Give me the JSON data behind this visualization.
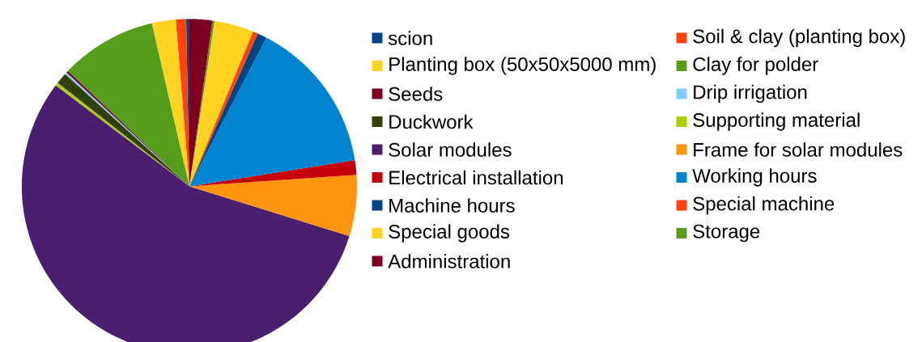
{
  "chart_data": {
    "type": "pie",
    "legend": "right",
    "categories": [
      "scion",
      "Soil & clay (planting box)",
      "Planting box (50x50x5000 mm)",
      "Clay for polder",
      "Seeds",
      "Drip irrigation",
      "Duckwork",
      "Supporting material",
      "Solar modules",
      "Frame for solar modules",
      "Electrical installation",
      "Working hours",
      "Machine hours",
      "Special machine",
      "Special goods",
      "Storage",
      "Administration"
    ],
    "values": [
      0.3,
      1.0,
      2.3,
      9.3,
      0.2,
      0.2,
      1.1,
      0.3,
      55.5,
      5.9,
      1.4,
      14.9,
      0.9,
      0.5,
      3.8,
      0.2,
      2.2
    ],
    "colors": [
      "#004586",
      "#ff420e",
      "#ffd320",
      "#579d1c",
      "#7e0021",
      "#83caff",
      "#314004",
      "#aecf00",
      "#4b1f6f",
      "#ff950e",
      "#c5000b",
      "#0084d1",
      "#004586",
      "#ff420e",
      "#ffd320",
      "#579d1c",
      "#7e0021"
    ]
  }
}
